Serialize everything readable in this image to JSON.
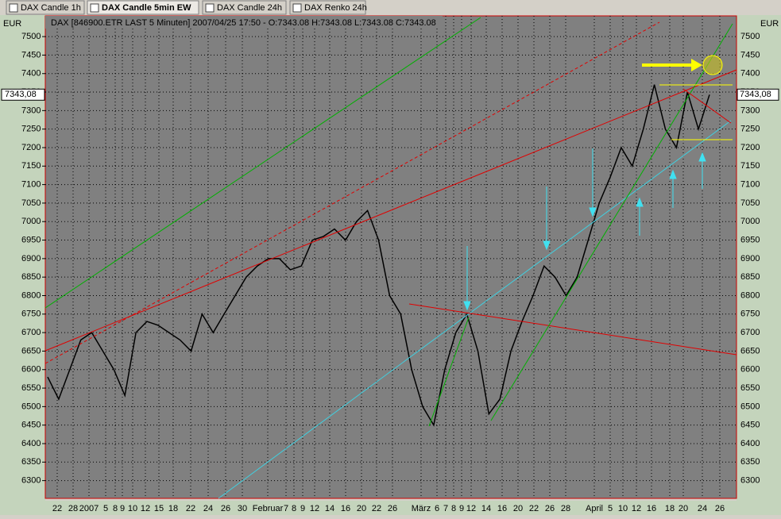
{
  "tabs": [
    "DAX Candle 1h",
    "DAX Candle 5min EW",
    "DAX Candle 24h",
    "DAX Renko 24h"
  ],
  "chart": {
    "type": "line",
    "header": "DAX [846900.ETR LAST 5 Minuten] 2007/04/25 17:50 - O:7343.08 H:7343.08 L:7343.08 C:7343.08",
    "y_unit": "EUR",
    "last_price_label": "7343,08",
    "last_price": 7343.08,
    "ylim": [
      6252,
      7556
    ],
    "yticks": [
      6300,
      6350,
      6400,
      6450,
      6500,
      6550,
      6600,
      6650,
      6700,
      6750,
      6800,
      6850,
      6900,
      6950,
      7000,
      7050,
      7100,
      7150,
      7200,
      7250,
      7300,
      7350,
      7400,
      7450,
      7500
    ],
    "x_labels": [
      "22",
      "28",
      "2007",
      "5",
      "8",
      "9",
      "10",
      "12",
      "15",
      "18",
      "22",
      "24",
      "26",
      "30",
      "Februar",
      "7",
      "8",
      "9",
      "12",
      "14",
      "16",
      "20",
      "22",
      "26",
      "März",
      "6",
      "7",
      "8",
      "9",
      "12",
      "14",
      "16",
      "20",
      "22",
      "26",
      "28",
      "April",
      "5",
      "10",
      "12",
      "16",
      "18",
      "20",
      "24",
      "26"
    ],
    "color": "#000000",
    "grid": true,
    "values": [
      6580,
      6520,
      6600,
      6680,
      6700,
      6650,
      6600,
      6530,
      6700,
      6730,
      6720,
      6700,
      6680,
      6650,
      6750,
      6700,
      6750,
      6800,
      6850,
      6880,
      6900,
      6900,
      6870,
      6880,
      6950,
      6960,
      6980,
      6950,
      7000,
      7030,
      6950,
      6800,
      6750,
      6600,
      6500,
      6450,
      6600,
      6700,
      6750,
      6650,
      6480,
      6520,
      6650,
      6730,
      6800,
      6880,
      6850,
      6800,
      6850,
      6950,
      7050,
      7120,
      7200,
      7150,
      7250,
      7370,
      7250,
      7200,
      7350,
      7250,
      7343.08
    ]
  }
}
